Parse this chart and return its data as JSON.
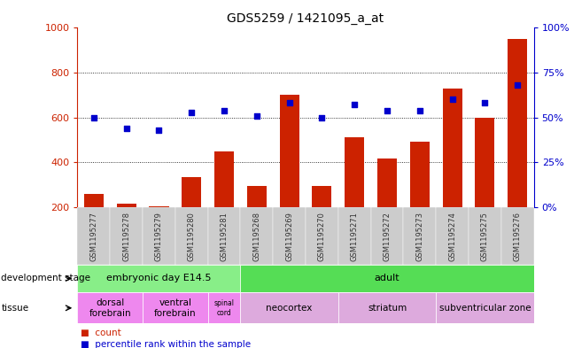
{
  "title": "GDS5259 / 1421095_a_at",
  "samples": [
    "GSM1195277",
    "GSM1195278",
    "GSM1195279",
    "GSM1195280",
    "GSM1195281",
    "GSM1195268",
    "GSM1195269",
    "GSM1195270",
    "GSM1195271",
    "GSM1195272",
    "GSM1195273",
    "GSM1195274",
    "GSM1195275",
    "GSM1195276"
  ],
  "counts": [
    260,
    215,
    205,
    335,
    450,
    295,
    700,
    295,
    510,
    415,
    490,
    730,
    600,
    950
  ],
  "percentiles": [
    50,
    44,
    43,
    53,
    54,
    51,
    58,
    50,
    57,
    54,
    54,
    60,
    58,
    68
  ],
  "ylim_left": [
    200,
    1000
  ],
  "ylim_right": [
    0,
    100
  ],
  "yticks_left": [
    200,
    400,
    600,
    800,
    1000
  ],
  "yticks_right": [
    0,
    25,
    50,
    75,
    100
  ],
  "bar_color": "#cc2200",
  "dot_color": "#0000cc",
  "dev_stage_groups": [
    {
      "label": "embryonic day E14.5",
      "start": 0,
      "end": 5,
      "color": "#88ee88"
    },
    {
      "label": "adult",
      "start": 5,
      "end": 14,
      "color": "#55dd55"
    }
  ],
  "tissue_groups": [
    {
      "label": "dorsal\nforebrain",
      "start": 0,
      "end": 2,
      "color": "#ee88ee"
    },
    {
      "label": "ventral\nforebrain",
      "start": 2,
      "end": 4,
      "color": "#ee88ee"
    },
    {
      "label": "spinal\ncord",
      "start": 4,
      "end": 5,
      "color": "#ee88ee"
    },
    {
      "label": "neocortex",
      "start": 5,
      "end": 8,
      "color": "#ddaadd"
    },
    {
      "label": "striatum",
      "start": 8,
      "end": 11,
      "color": "#ddaadd"
    },
    {
      "label": "subventricular zone",
      "start": 11,
      "end": 14,
      "color": "#ddaadd"
    }
  ],
  "left_axis_color": "#cc2200",
  "right_axis_color": "#0000cc",
  "xticklabel_color": "#333333",
  "grid_dotted_at": [
    400,
    600,
    800
  ],
  "xtick_bg_color": "#cccccc"
}
